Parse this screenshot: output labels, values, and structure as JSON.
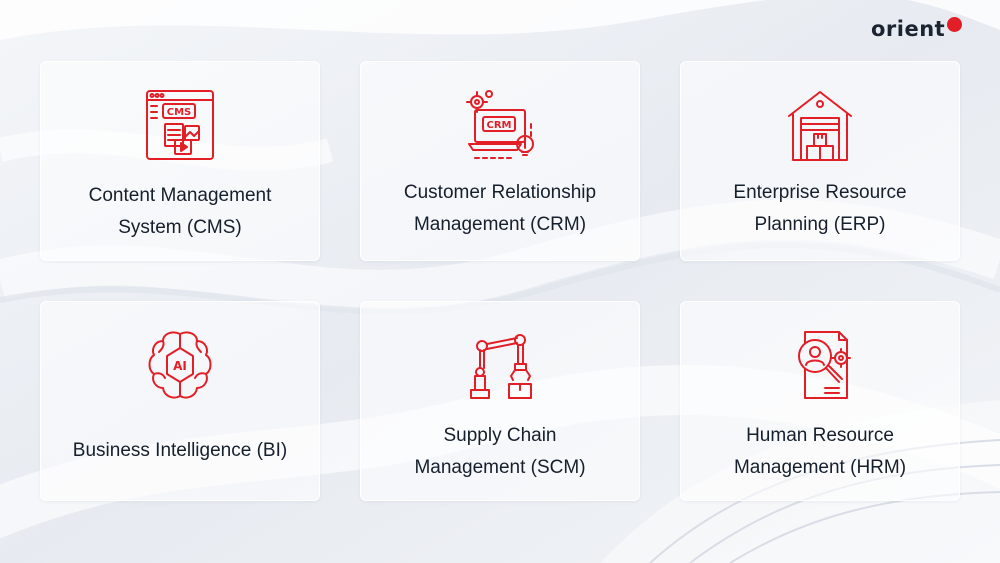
{
  "brand": {
    "name": "orient"
  },
  "colors": {
    "accent": "#e21e26",
    "text": "#16202c",
    "card": "#ffffff"
  },
  "cards": [
    {
      "icon": "cms-window-icon",
      "lines": [
        "Content Management",
        "System (CMS)"
      ]
    },
    {
      "icon": "crm-laptop-icon",
      "lines": [
        "Customer Relationship",
        "Management (CRM)"
      ]
    },
    {
      "icon": "warehouse-icon",
      "lines": [
        "Enterprise Resource",
        "Planning (ERP)"
      ]
    },
    {
      "icon": "ai-brain-icon",
      "lines": [
        "Business Intelligence (BI)"
      ]
    },
    {
      "icon": "robotic-arm-icon",
      "lines": [
        "Supply Chain",
        "Management (SCM)"
      ]
    },
    {
      "icon": "hr-search-icon",
      "lines": [
        "Human Resource",
        "Management (HRM)"
      ]
    }
  ],
  "icon_text": {
    "cms": "CMS",
    "crm": "CRM",
    "ai": "AI"
  }
}
